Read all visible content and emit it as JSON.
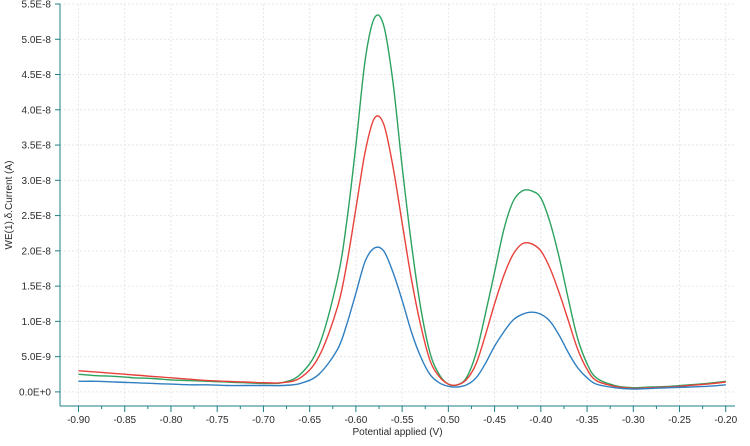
{
  "chart_data": {
    "type": "line",
    "title": "",
    "xlabel": "Potential applied (V)",
    "ylabel": "WE(1).δ.Current (A)",
    "xlim": [
      -0.92,
      -0.19
    ],
    "ylim": [
      -2e-09,
      5.5e-08
    ],
    "x_ticks": [
      -0.9,
      -0.85,
      -0.8,
      -0.75,
      -0.7,
      -0.65,
      -0.6,
      -0.55,
      -0.5,
      -0.45,
      -0.4,
      -0.35,
      -0.3,
      -0.25,
      -0.2
    ],
    "x_tick_labels": [
      "-0.90",
      "-0.85",
      "-0.80",
      "-0.75",
      "-0.70",
      "-0.65",
      "-0.60",
      "-0.55",
      "-0.50",
      "-0.45",
      "-0.40",
      "-0.35",
      "-0.30",
      "-0.25",
      "-0.20"
    ],
    "y_ticks": [
      0,
      5e-09,
      1e-08,
      1.5e-08,
      2e-08,
      2.5e-08,
      3e-08,
      3.5e-08,
      4e-08,
      4.5e-08,
      5e-08,
      5.5e-08
    ],
    "y_tick_labels": [
      "0.0E+0",
      "5.0E-9",
      "1.0E-8",
      "1.5E-8",
      "2.0E-8",
      "2.5E-8",
      "3.0E-8",
      "3.5E-8",
      "4.0E-8",
      "4.5E-8",
      "5.0E-8",
      "5.5E-8"
    ],
    "grid": true,
    "legend": "none",
    "x": [
      -0.9,
      -0.88,
      -0.86,
      -0.84,
      -0.82,
      -0.8,
      -0.78,
      -0.76,
      -0.74,
      -0.72,
      -0.7,
      -0.68,
      -0.66,
      -0.64,
      -0.62,
      -0.61,
      -0.6,
      -0.59,
      -0.58,
      -0.57,
      -0.56,
      -0.55,
      -0.54,
      -0.53,
      -0.52,
      -0.51,
      -0.5,
      -0.49,
      -0.48,
      -0.47,
      -0.46,
      -0.45,
      -0.44,
      -0.43,
      -0.42,
      -0.41,
      -0.4,
      -0.39,
      -0.38,
      -0.37,
      -0.36,
      -0.35,
      -0.34,
      -0.32,
      -0.3,
      -0.28,
      -0.26,
      -0.24,
      -0.22,
      -0.2
    ],
    "series": [
      {
        "color": "#2ca25f",
        "values": [
          2.5e-09,
          2.3e-09,
          2.2e-09,
          2e-09,
          1.9e-09,
          1.7e-09,
          1.6e-09,
          1.5e-09,
          1.4e-09,
          1.3e-09,
          1.2e-09,
          1.3e-09,
          2.5e-09,
          6.5e-09,
          1.6e-08,
          2.4e-08,
          3.5e-08,
          4.7e-08,
          5.3e-08,
          5.2e-08,
          4.4e-08,
          3.2e-08,
          2.1e-08,
          1.2e-08,
          5.6e-09,
          2.5e-09,
          1.1e-09,
          1e-09,
          2.1e-09,
          5.5e-09,
          1.1e-08,
          1.7e-08,
          2.3e-08,
          2.7e-08,
          2.85e-08,
          2.85e-08,
          2.75e-08,
          2.4e-08,
          1.9e-08,
          1.3e-08,
          7.5e-09,
          4e-09,
          2e-09,
          9e-10,
          6e-10,
          7e-10,
          8e-10,
          1e-09,
          1.2e-09,
          1.5e-09
        ]
      },
      {
        "color": "#e8413a",
        "values": [
          3e-09,
          2.8e-09,
          2.6e-09,
          2.4e-09,
          2.2e-09,
          2e-09,
          1.8e-09,
          1.6e-09,
          1.5e-09,
          1.4e-09,
          1.3e-09,
          1.3e-09,
          2e-09,
          5e-09,
          1.2e-08,
          1.8e-08,
          2.6e-08,
          3.4e-08,
          3.88e-08,
          3.8e-08,
          3.2e-08,
          2.4e-08,
          1.6e-08,
          9.5e-09,
          4.5e-09,
          2.2e-09,
          1.1e-09,
          1e-09,
          1.8e-09,
          4e-09,
          8e-09,
          1.25e-08,
          1.65e-08,
          1.95e-08,
          2.1e-08,
          2.1e-08,
          2e-08,
          1.75e-08,
          1.4e-08,
          1e-08,
          6e-09,
          3.2e-09,
          1.6e-09,
          8e-10,
          5e-10,
          6e-10,
          7e-10,
          9e-10,
          1.1e-09,
          1.4e-09
        ]
      },
      {
        "color": "#2f7fc1",
        "values": [
          1.5e-09,
          1.5e-09,
          1.4e-09,
          1.3e-09,
          1.2e-09,
          1.1e-09,
          1e-09,
          1e-09,
          9e-10,
          9e-10,
          9e-10,
          9e-10,
          1.2e-09,
          2.5e-09,
          6e-09,
          9.5e-09,
          1.4e-08,
          1.85e-08,
          2.04e-08,
          2e-08,
          1.7e-08,
          1.3e-08,
          8.5e-09,
          5e-09,
          2.5e-09,
          1.3e-09,
          8e-10,
          7e-10,
          1e-09,
          2e-09,
          4e-09,
          6.5e-09,
          8.5e-09,
          1.02e-08,
          1.1e-08,
          1.13e-08,
          1.1e-08,
          1e-08,
          8e-09,
          5.5e-09,
          3.4e-09,
          2e-09,
          1.1e-09,
          6e-10,
          4e-10,
          5e-10,
          6e-10,
          7e-10,
          8e-10,
          1e-09
        ]
      }
    ]
  }
}
